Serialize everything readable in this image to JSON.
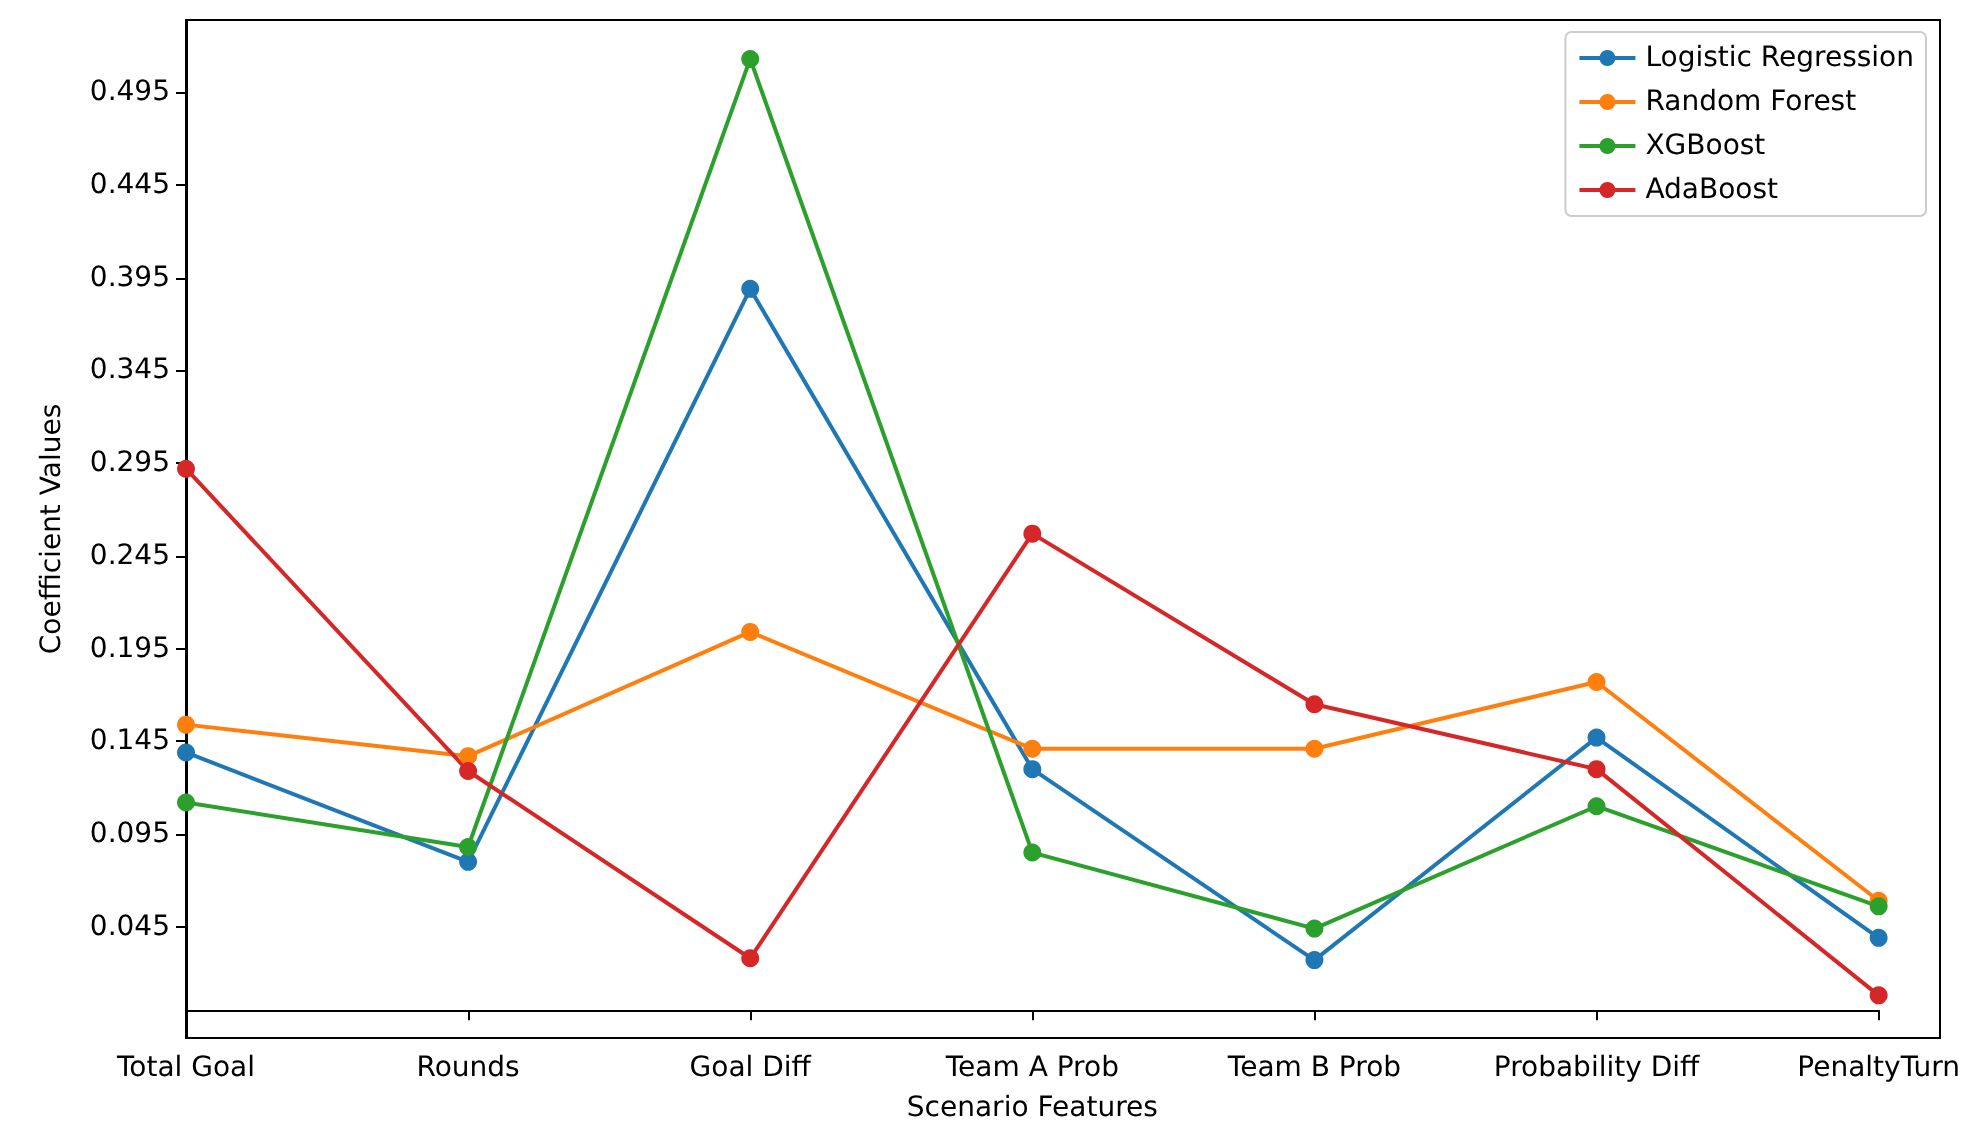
{
  "chart_data": {
    "type": "line",
    "xlabel": "Scenario Features",
    "ylabel": "Coefficient Values",
    "categories": [
      "Total Goal",
      "Rounds",
      "Goal Diff",
      "Team A Prob",
      "Team B Prob",
      "Probability Diff",
      "PenaltyTurn"
    ],
    "series": [
      {
        "name": "Logistic Regression",
        "color": "#1f77b4",
        "values": [
          0.139,
          0.08,
          0.389,
          0.13,
          0.027,
          0.147,
          0.039
        ]
      },
      {
        "name": "Random Forest",
        "color": "#ff7f0e",
        "values": [
          0.154,
          0.137,
          0.204,
          0.141,
          0.141,
          0.177,
          0.059
        ]
      },
      {
        "name": "XGBoost",
        "color": "#2ca02c",
        "values": [
          0.112,
          0.088,
          0.513,
          0.085,
          0.044,
          0.11,
          0.056
        ]
      },
      {
        "name": "AdaBoost",
        "color": "#d62728",
        "values": [
          0.292,
          0.129,
          0.028,
          0.257,
          0.165,
          0.13,
          0.008
        ]
      }
    ],
    "ylim": [
      -0.015,
      0.534
    ],
    "yticks": [
      0.045,
      0.095,
      0.145,
      0.195,
      0.245,
      0.295,
      0.345,
      0.395,
      0.445,
      0.495
    ],
    "legend": "top right",
    "marker": "circle",
    "grid": false
  }
}
